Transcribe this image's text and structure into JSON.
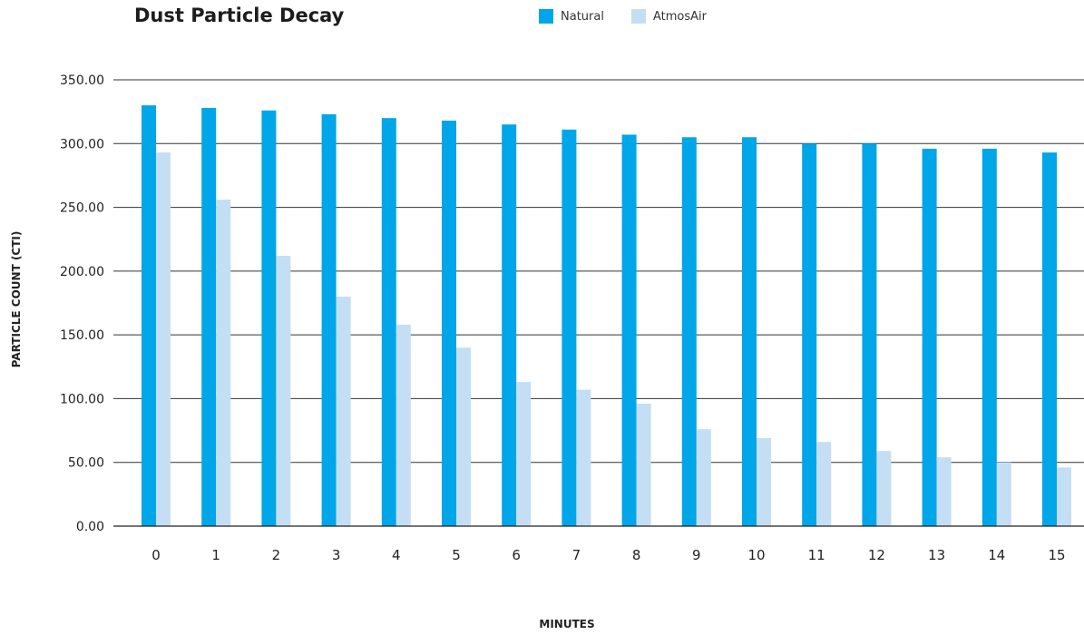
{
  "chart_data": {
    "type": "bar",
    "title": "Dust Particle Decay",
    "xlabel": "MINUTES",
    "ylabel": "PARTICLE COUNT (CTI)",
    "categories": [
      "0",
      "1",
      "2",
      "3",
      "4",
      "5",
      "6",
      "7",
      "8",
      "9",
      "10",
      "11",
      "12",
      "13",
      "14",
      "15"
    ],
    "series": [
      {
        "name": "Natural",
        "color": "#00A6E7",
        "values": [
          330,
          328,
          326,
          323,
          320,
          318,
          315,
          311,
          307,
          305,
          305,
          300,
          300,
          296,
          296,
          293
        ]
      },
      {
        "name": "AtmosAir",
        "color": "#C4DEF4",
        "values": [
          293,
          256,
          212,
          180,
          158,
          140,
          113,
          107,
          96,
          76,
          69,
          66,
          59,
          54,
          50,
          46
        ]
      }
    ],
    "ylim": [
      0,
      350
    ],
    "yticks": [
      "0.00",
      "50.00",
      "100.00",
      "150.00",
      "200.00",
      "250.00",
      "300.00",
      "350.00"
    ],
    "grid": true,
    "legend_position": "top"
  }
}
